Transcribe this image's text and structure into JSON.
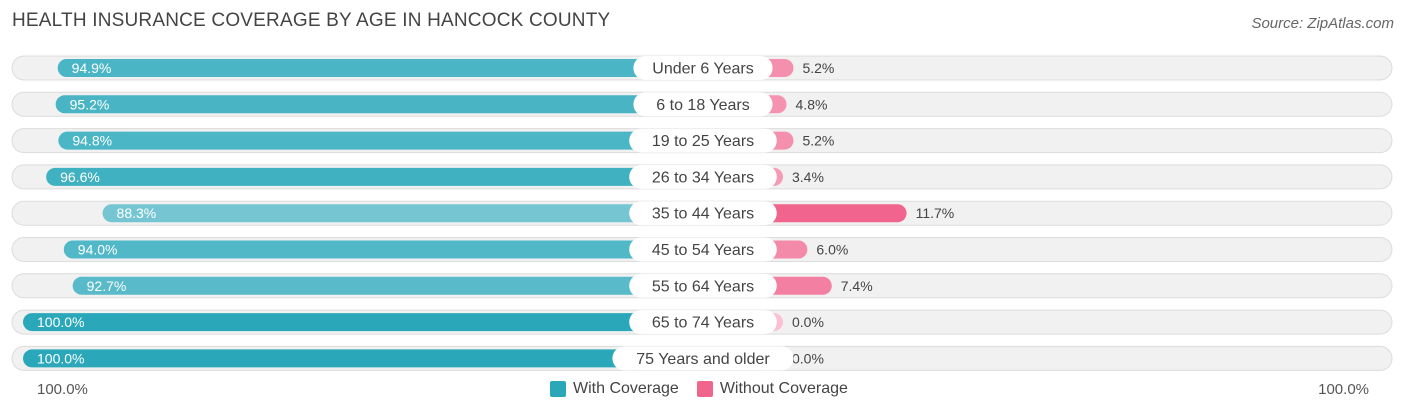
{
  "colors": {
    "with_coverage": "#2aa8ba",
    "without_coverage": "#f0648e",
    "track": "#f1f1f1",
    "track_border": "#dcdcdc"
  },
  "chart_data": {
    "type": "bar",
    "title": "HEALTH INSURANCE COVERAGE BY AGE IN HANCOCK COUNTY",
    "source": "Source: ZipAtlas.com",
    "categories": [
      "Under 6 Years",
      "6 to 18 Years",
      "19 to 25 Years",
      "26 to 34 Years",
      "35 to 44 Years",
      "45 to 54 Years",
      "55 to 64 Years",
      "65 to 74 Years",
      "75 Years and older"
    ],
    "series": [
      {
        "name": "With Coverage",
        "values": [
          94.9,
          95.2,
          94.8,
          96.6,
          88.3,
          94.0,
          92.7,
          100.0,
          100.0
        ],
        "labels": [
          "94.9%",
          "95.2%",
          "94.8%",
          "96.6%",
          "88.3%",
          "94.0%",
          "92.7%",
          "100.0%",
          "100.0%"
        ]
      },
      {
        "name": "Without Coverage",
        "values": [
          5.2,
          4.8,
          5.2,
          3.4,
          11.7,
          6.0,
          7.4,
          0.0,
          0.0
        ],
        "labels": [
          "5.2%",
          "4.8%",
          "5.2%",
          "3.4%",
          "11.7%",
          "6.0%",
          "7.4%",
          "0.0%",
          "0.0%"
        ]
      }
    ],
    "axis_left_label": "100.0%",
    "axis_right_label": "100.0%",
    "legend": [
      "With Coverage",
      "Without Coverage"
    ]
  }
}
